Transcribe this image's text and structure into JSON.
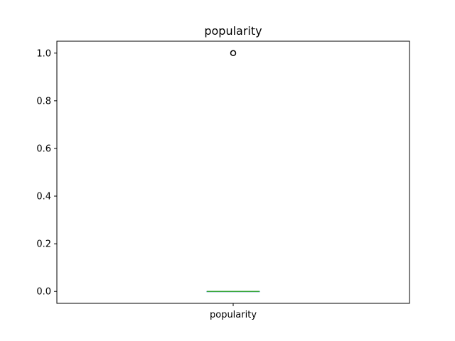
{
  "chart_data": {
    "type": "box",
    "title": "popularity",
    "categories": [
      "popularity"
    ],
    "ylim": [
      -0.05,
      1.05
    ],
    "yticks": [
      0.0,
      0.2,
      0.4,
      0.6,
      0.8,
      1.0
    ],
    "ytick_labels": [
      "0.0",
      "0.2",
      "0.4",
      "0.6",
      "0.8",
      "1.0"
    ],
    "boxes": [
      {
        "name": "popularity",
        "whisker_low": 0.0,
        "q1": 0.0,
        "median": 0.0,
        "q3": 0.0,
        "whisker_high": 0.0,
        "outliers": [
          1.0
        ]
      }
    ],
    "median_color": "#2ca02c",
    "box_color": "#1f77b4",
    "outlier_color": "#000000",
    "grid": false
  }
}
